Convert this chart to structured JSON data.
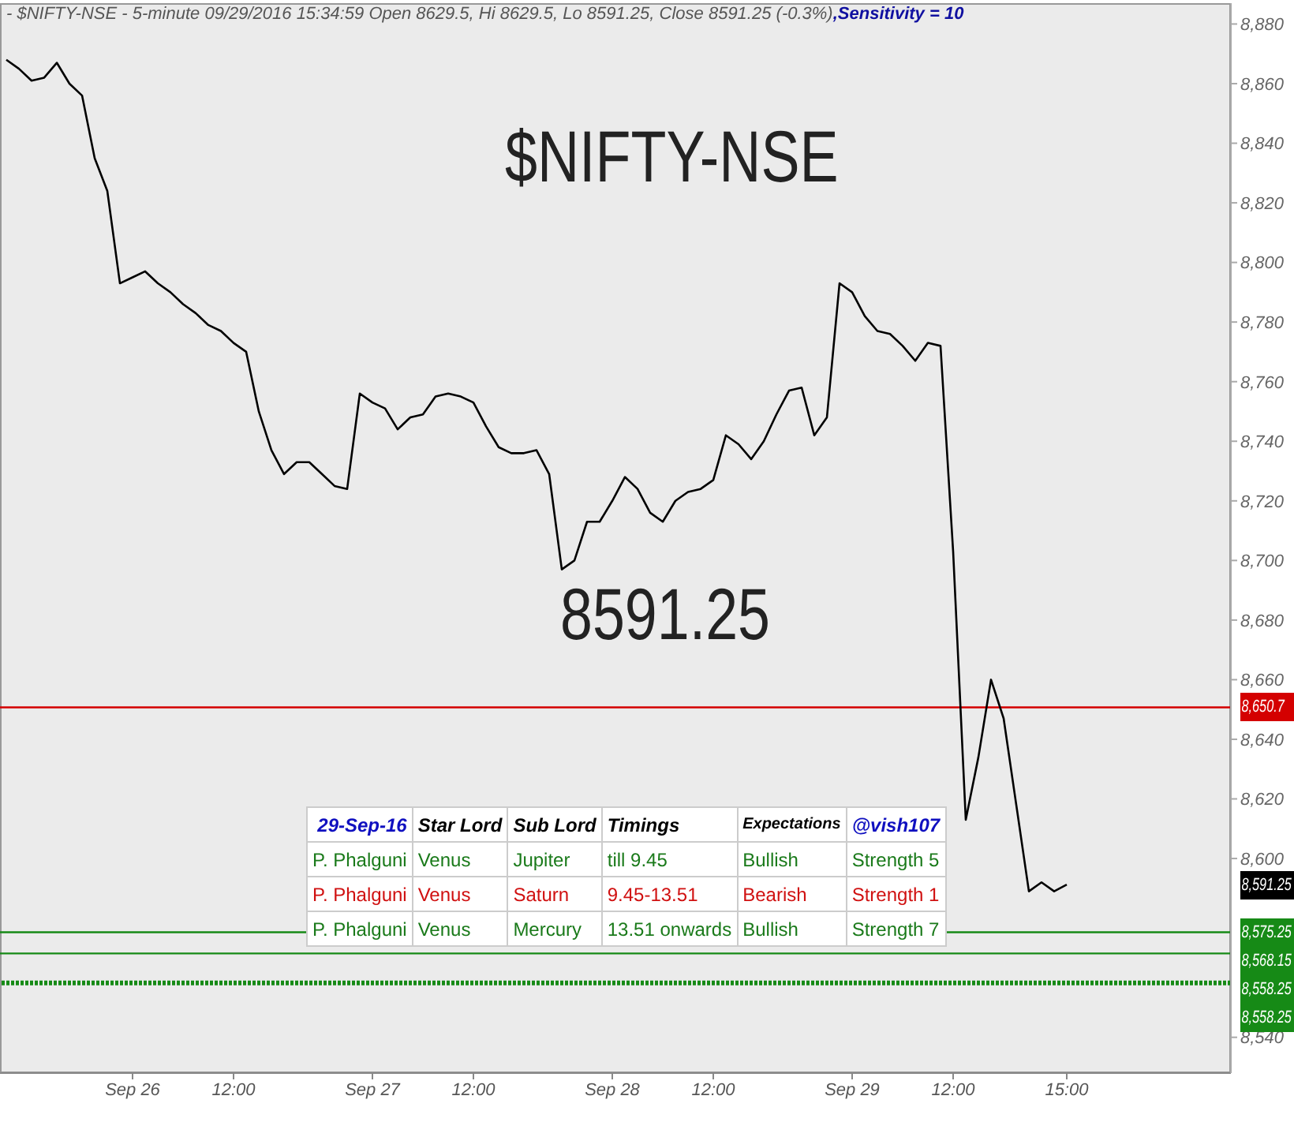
{
  "chart_data": {
    "type": "line",
    "title": "- $NIFTY-NSE - 5-minute 09/29/2016 15:34:59 Open 8629.5, Hi 8629.5, Lo 8591.25, Close 8591.25 (-0.3%)",
    "subtitle": ",Sensitivity = 10",
    "categories": [
      null,
      null,
      null,
      null,
      null,
      null,
      null,
      null,
      null,
      null,
      "Sep 26",
      null,
      null,
      null,
      null,
      null,
      null,
      null,
      "12:00",
      null,
      null,
      null,
      null,
      null,
      null,
      null,
      null,
      null,
      null,
      "Sep 27",
      null,
      null,
      null,
      null,
      null,
      null,
      null,
      "12:00",
      null,
      null,
      null,
      null,
      null,
      null,
      null,
      null,
      null,
      null,
      "Sep 28",
      null,
      null,
      null,
      null,
      null,
      null,
      null,
      "12:00",
      null,
      null,
      null,
      null,
      null,
      null,
      null,
      null,
      null,
      null,
      "Sep 29",
      null,
      null,
      null,
      null,
      null,
      null,
      null,
      "12:00",
      null,
      null,
      null,
      null,
      null,
      null,
      null,
      null,
      "15:00"
    ],
    "series": [
      {
        "color": "#000000",
        "values": [
          8868,
          8865,
          8861,
          8862,
          8867,
          8860,
          8856,
          8835,
          8824,
          8793,
          8795,
          8797,
          8793,
          8790,
          8786,
          8783,
          8779,
          8777,
          8773,
          8770,
          8750,
          8737,
          8729,
          8733,
          8733,
          8729,
          8725,
          8724,
          8756,
          8753,
          8751,
          8744,
          8748,
          8749,
          8755,
          8756,
          8755,
          8753,
          8745,
          8738,
          8736,
          8736,
          8737,
          8729,
          8697,
          8700,
          8713,
          8713,
          8720,
          8728,
          8724,
          8716,
          8713,
          8720,
          8723,
          8724,
          8727,
          8742,
          8739,
          8734,
          8740,
          8749,
          8757,
          8758,
          8742,
          8748,
          8793,
          8790,
          8782,
          8777,
          8776,
          8772,
          8767,
          8773,
          8772,
          8703,
          8613,
          8634,
          8660,
          8647,
          8618,
          8589,
          8592,
          8589,
          8591.25
        ]
      }
    ],
    "ylim": [
      8528,
      8887
    ],
    "yticks": [
      {
        "value": 8540,
        "label": "8,540"
      },
      {
        "value": 8600,
        "label": "8,600"
      },
      {
        "value": 8620,
        "label": "8,620"
      },
      {
        "value": 8640,
        "label": "8,640"
      },
      {
        "value": 8660,
        "label": "8,660"
      },
      {
        "value": 8680,
        "label": "8,680"
      },
      {
        "value": 8700,
        "label": "8,700"
      },
      {
        "value": 8720,
        "label": "8,720"
      },
      {
        "value": 8740,
        "label": "8,740"
      },
      {
        "value": 8760,
        "label": "8,760"
      },
      {
        "value": 8780,
        "label": "8,780"
      },
      {
        "value": 8800,
        "label": "8,800"
      },
      {
        "value": 8820,
        "label": "8,820"
      },
      {
        "value": 8840,
        "label": "8,840"
      },
      {
        "value": 8860,
        "label": "8,860"
      },
      {
        "value": 8880,
        "label": "8,880"
      }
    ],
    "marker": "none",
    "line_style": "solid",
    "ref_lines": [
      {
        "axis": "y",
        "value": 8650.7,
        "label": "8,650.7",
        "color": "#d40000",
        "line_style": "solid"
      },
      {
        "axis": "y",
        "value": 8575.25,
        "label": "8,575.25",
        "color": "#168a16",
        "line_style": "solid"
      },
      {
        "axis": "y",
        "value": 8568.15,
        "label": "8,568.15",
        "color": "#168a16",
        "line_style": "solid"
      },
      {
        "axis": "y",
        "value": 8558.25,
        "label": "8,558.25",
        "color": "#168a16",
        "line_style": "dotted"
      }
    ],
    "annotations": [
      "$NIFTY-NSE",
      "8591.25",
      "8,558.25",
      "8,591.25",
      "29-Sep-16",
      "Star Lord",
      "Sub Lord",
      "Timings",
      "Expectations",
      "@vish107",
      "P. Phalguni",
      "Venus",
      "Jupiter",
      "till 9.45",
      "Bullish",
      "Strength 5",
      "P. Phalguni",
      "Venus",
      "Saturn",
      "9.45-13.51",
      "Bearish",
      "Strength 1",
      "P. Phalguni",
      "Venus",
      "Mercury",
      "13.51 onwards",
      "Bullish",
      "Strength 7"
    ]
  }
}
